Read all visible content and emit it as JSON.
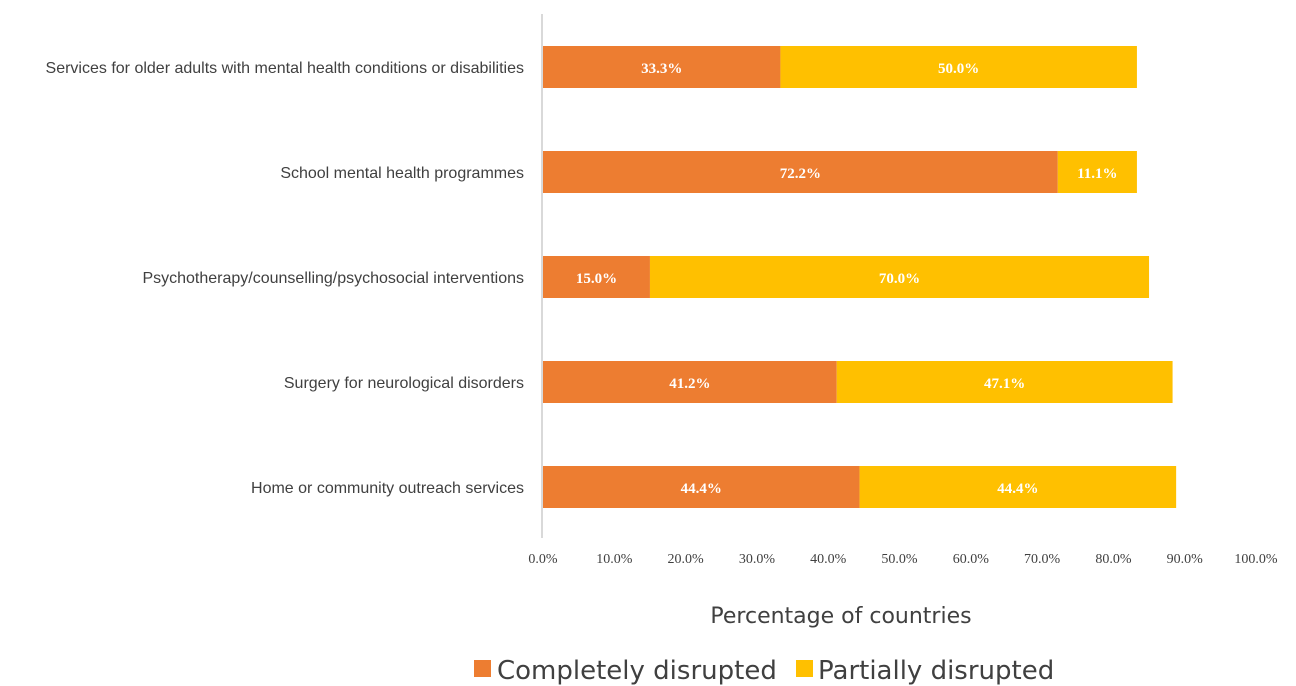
{
  "chart_data": {
    "type": "bar",
    "orientation": "horizontal",
    "stacked": true,
    "categories": [
      "Services for older adults with mental health conditions or disabilities",
      "School mental health programmes",
      "Psychotherapy/counselling/psychosocial interventions",
      "Surgery for neurological disorders",
      "Home or community outreach services"
    ],
    "series": [
      {
        "name": "Completely disrupted",
        "color": "#ED7D31",
        "values": [
          33.3,
          72.2,
          15.0,
          41.2,
          44.4
        ],
        "labels": [
          "33.3%",
          "72.2%",
          "15.0%",
          "41.2%",
          "44.4%"
        ]
      },
      {
        "name": "Partially disrupted",
        "color": "#FFC000",
        "values": [
          50.0,
          11.1,
          70.0,
          47.1,
          44.4
        ],
        "labels": [
          "50.0%",
          "11.1%",
          "70.0%",
          "47.1%",
          "44.4%"
        ]
      }
    ],
    "xlim": [
      0,
      100
    ],
    "xticks": [
      0,
      10,
      20,
      30,
      40,
      50,
      60,
      70,
      80,
      90,
      100
    ],
    "xtick_labels": [
      "0.0%",
      "10.0%",
      "20.0%",
      "30.0%",
      "40.0%",
      "50.0%",
      "60.0%",
      "70.0%",
      "80.0%",
      "90.0%",
      "100.0%"
    ],
    "xlabel": "Percentage of countries",
    "ylabel": "",
    "title": "",
    "grid": false,
    "legend_position": "bottom"
  }
}
